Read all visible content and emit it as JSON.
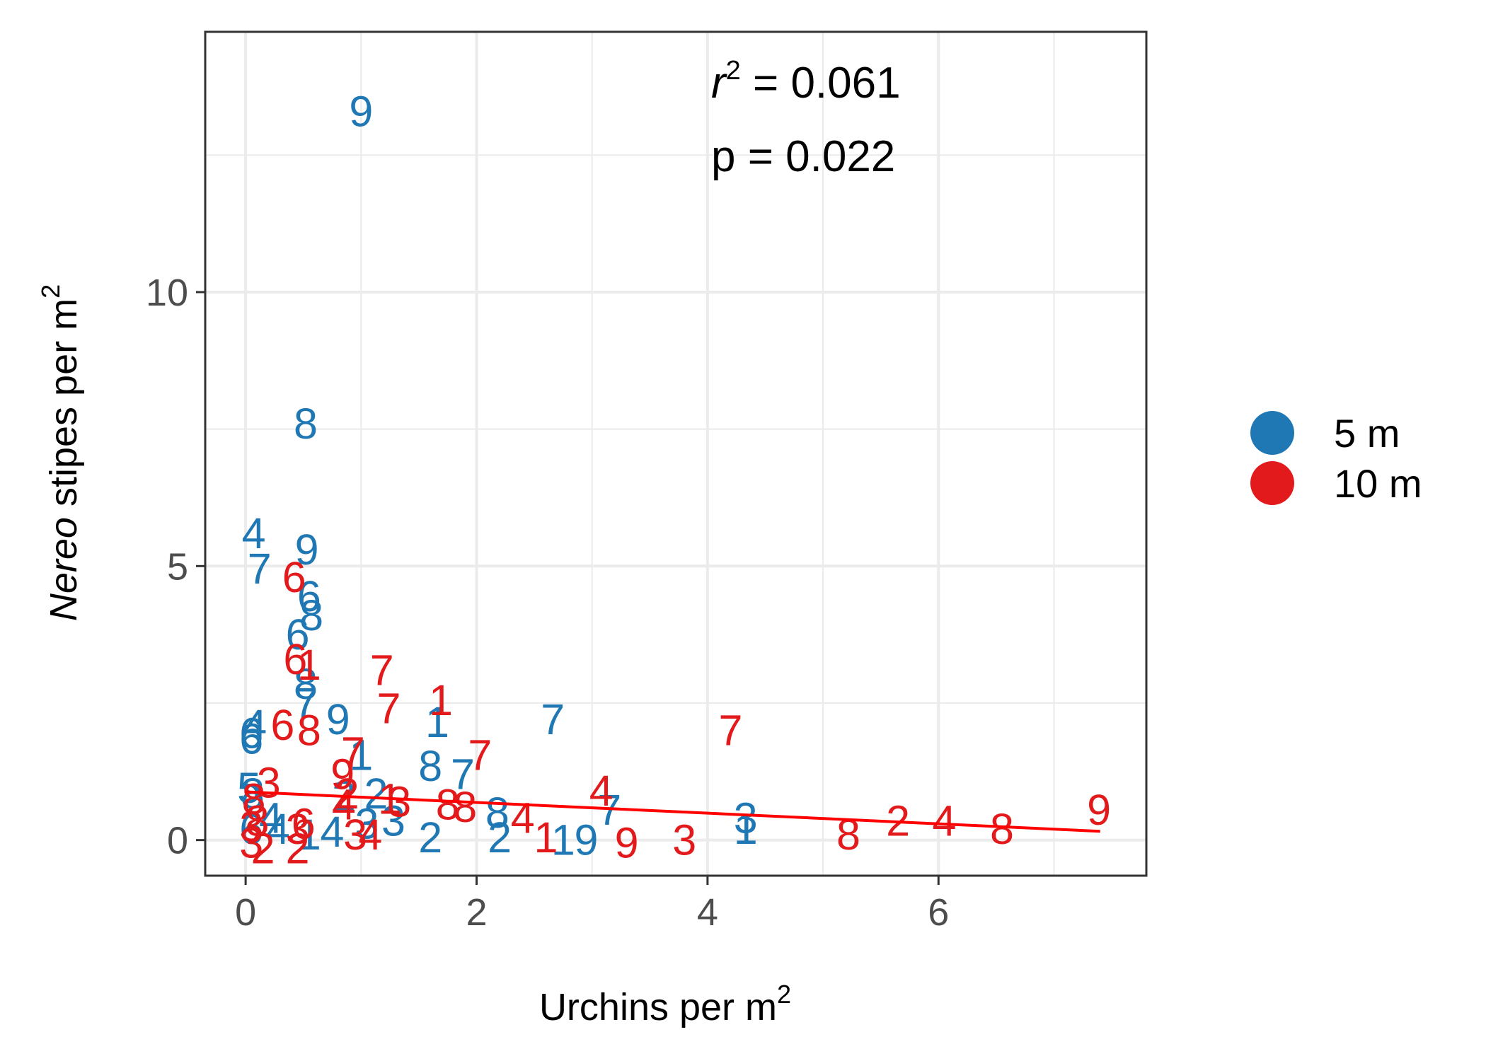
{
  "chart_data": {
    "type": "scatter",
    "x_axis": {
      "label": "Urchins per m",
      "label_superscript": "2",
      "range": [
        -0.35,
        7.8
      ],
      "ticks": [
        0,
        2,
        4,
        6
      ],
      "tick_labels": [
        "0",
        "2",
        "4",
        "6"
      ]
    },
    "y_axis": {
      "label_italic": "Nereo",
      "label": " stipes per m",
      "label_superscript": "2",
      "range": [
        -0.65,
        14.75
      ],
      "ticks": [
        0,
        5,
        10
      ],
      "tick_labels": [
        "0",
        "5",
        "10"
      ]
    },
    "grid": true,
    "legend_position": "right",
    "annotations": {
      "r2_var": "r",
      "r2_sup": "2",
      "r2_eq": " = 0.061",
      "p": "p = 0.022"
    },
    "series": [
      {
        "name": "5 m",
        "color": "#1f78b4",
        "points": [
          {
            "x": 1.0,
            "y": 13.3,
            "label": "9"
          },
          {
            "x": 0.52,
            "y": 7.6,
            "label": "8"
          },
          {
            "x": 0.07,
            "y": 5.6,
            "label": "4"
          },
          {
            "x": 0.53,
            "y": 5.3,
            "label": "9"
          },
          {
            "x": 0.12,
            "y": 4.95,
            "label": "7"
          },
          {
            "x": 0.55,
            "y": 4.45,
            "label": "6"
          },
          {
            "x": 0.57,
            "y": 4.1,
            "label": "8"
          },
          {
            "x": 0.45,
            "y": 3.75,
            "label": "6"
          },
          {
            "x": 0.52,
            "y": 2.85,
            "label": "8"
          },
          {
            "x": 0.52,
            "y": 2.5,
            "label": "7"
          },
          {
            "x": 0.8,
            "y": 2.2,
            "label": "9"
          },
          {
            "x": 0.08,
            "y": 2.1,
            "label": "4"
          },
          {
            "x": 0.05,
            "y": 1.95,
            "label": "6"
          },
          {
            "x": 0.05,
            "y": 1.85,
            "label": "6"
          },
          {
            "x": 1.66,
            "y": 2.15,
            "label": "1"
          },
          {
            "x": 2.66,
            "y": 2.2,
            "label": "7"
          },
          {
            "x": 1.0,
            "y": 1.55,
            "label": "1"
          },
          {
            "x": 1.6,
            "y": 1.35,
            "label": "8"
          },
          {
            "x": 1.88,
            "y": 1.2,
            "label": "7"
          },
          {
            "x": 0.03,
            "y": 0.95,
            "label": "5"
          },
          {
            "x": 0.06,
            "y": 0.85,
            "label": "8"
          },
          {
            "x": 1.13,
            "y": 0.85,
            "label": "2"
          },
          {
            "x": 0.85,
            "y": 0.8,
            "label": "2"
          },
          {
            "x": 3.15,
            "y": 0.55,
            "label": "7"
          },
          {
            "x": 0.22,
            "y": 0.4,
            "label": "4"
          },
          {
            "x": 2.18,
            "y": 0.5,
            "label": "8"
          },
          {
            "x": 4.33,
            "y": 0.4,
            "label": "3"
          },
          {
            "x": 1.28,
            "y": 0.35,
            "label": "3"
          },
          {
            "x": 1.05,
            "y": 0.3,
            "label": "3"
          },
          {
            "x": 4.33,
            "y": 0.2,
            "label": "1"
          },
          {
            "x": 0.05,
            "y": 0.2,
            "label": "6"
          },
          {
            "x": 0.28,
            "y": 0.2,
            "label": "4"
          },
          {
            "x": 0.75,
            "y": 0.15,
            "label": "4"
          },
          {
            "x": 0.55,
            "y": 0.1,
            "label": "1"
          },
          {
            "x": 1.6,
            "y": 0.05,
            "label": "2"
          },
          {
            "x": 2.2,
            "y": 0.05,
            "label": "2"
          },
          {
            "x": 2.75,
            "y": 0.0,
            "label": "1"
          },
          {
            "x": 2.95,
            "y": 0.0,
            "label": "9"
          }
        ]
      },
      {
        "name": "10 m",
        "color": "#e31a1c",
        "points": [
          {
            "x": 0.42,
            "y": 4.8,
            "label": "6"
          },
          {
            "x": 0.43,
            "y": 3.3,
            "label": "6"
          },
          {
            "x": 0.55,
            "y": 3.2,
            "label": "1"
          },
          {
            "x": 1.18,
            "y": 3.1,
            "label": "7"
          },
          {
            "x": 1.69,
            "y": 2.55,
            "label": "1"
          },
          {
            "x": 1.24,
            "y": 2.4,
            "label": "7"
          },
          {
            "x": 0.32,
            "y": 2.1,
            "label": "6"
          },
          {
            "x": 0.55,
            "y": 2.0,
            "label": "8"
          },
          {
            "x": 0.93,
            "y": 1.6,
            "label": "7"
          },
          {
            "x": 2.03,
            "y": 1.55,
            "label": "7"
          },
          {
            "x": 0.84,
            "y": 1.2,
            "label": "9"
          },
          {
            "x": 4.2,
            "y": 2.0,
            "label": "7"
          },
          {
            "x": 0.2,
            "y": 1.05,
            "label": "3"
          },
          {
            "x": 0.07,
            "y": 0.75,
            "label": "8"
          },
          {
            "x": 3.08,
            "y": 0.9,
            "label": "4"
          },
          {
            "x": 0.88,
            "y": 0.85,
            "label": "2"
          },
          {
            "x": 1.33,
            "y": 0.7,
            "label": "3"
          },
          {
            "x": 1.75,
            "y": 0.65,
            "label": "8"
          },
          {
            "x": 1.9,
            "y": 0.6,
            "label": "8"
          },
          {
            "x": 0.85,
            "y": 0.65,
            "label": "4"
          },
          {
            "x": 1.25,
            "y": 0.75,
            "label": "1"
          },
          {
            "x": 2.4,
            "y": 0.4,
            "label": "4"
          },
          {
            "x": 7.39,
            "y": 0.55,
            "label": "9"
          },
          {
            "x": 5.65,
            "y": 0.35,
            "label": "2"
          },
          {
            "x": 6.05,
            "y": 0.35,
            "label": "4"
          },
          {
            "x": 6.55,
            "y": 0.2,
            "label": "8"
          },
          {
            "x": 5.22,
            "y": 0.1,
            "label": "8"
          },
          {
            "x": 0.1,
            "y": 0.35,
            "label": "8"
          },
          {
            "x": 0.05,
            "y": 0.25,
            "label": "3"
          },
          {
            "x": 0.5,
            "y": 0.3,
            "label": "6"
          },
          {
            "x": 0.45,
            "y": 0.2,
            "label": "3"
          },
          {
            "x": 0.95,
            "y": 0.1,
            "label": "3"
          },
          {
            "x": 1.08,
            "y": 0.1,
            "label": "4"
          },
          {
            "x": 2.6,
            "y": 0.05,
            "label": "1"
          },
          {
            "x": 3.3,
            "y": -0.05,
            "label": "9"
          },
          {
            "x": 3.8,
            "y": 0.0,
            "label": "3"
          },
          {
            "x": 0.15,
            "y": -0.15,
            "label": "2"
          },
          {
            "x": 0.45,
            "y": -0.15,
            "label": "2"
          },
          {
            "x": 0.05,
            "y": -0.05,
            "label": "3"
          }
        ]
      }
    ],
    "trend_line": {
      "color": "#ff0000",
      "x": [
        0.0,
        7.4
      ],
      "y": [
        0.88,
        0.16
      ]
    }
  }
}
